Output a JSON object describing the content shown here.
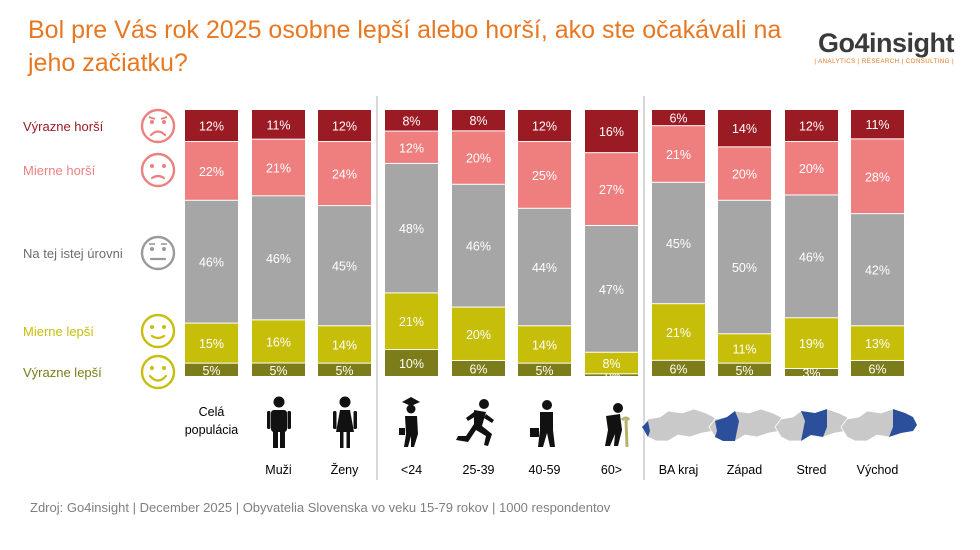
{
  "title": "Bol pre Vás rok 2025 osobne lepší alebo horší, ako ste očakávali na jeho začiatku?",
  "logo": {
    "name": "Go4insight",
    "tagline": "| ANALYTICS | RESEARCH | CONSULTING |"
  },
  "source": "Zdroj: Go4insight | December 2025 | Obyvatelia Slovenska vo veku 15-79 rokov | 1000 respondentov",
  "colors": {
    "title": "#e87722",
    "vyrazne_horsi": "#9b1b24",
    "mierne_horsi": "#ef7f7f",
    "rovnako": "#a6a6a6",
    "mierne_lepsi": "#c7be0a",
    "vyrazne_lepsi": "#7d7c1a",
    "map_highlight": "#2b4f9a",
    "map_base": "#c9c9c9"
  },
  "legend": [
    {
      "label": "Výrazne horší",
      "icon": "very-sad-face-icon"
    },
    {
      "label": "Mierne horší",
      "icon": "sad-face-icon"
    },
    {
      "label": "Na tej istej úrovni",
      "icon": "neutral-face-icon"
    },
    {
      "label": "Mierne lepší",
      "icon": "smile-face-icon"
    },
    {
      "label": "Výrazne lepší",
      "icon": "big-smile-face-icon"
    }
  ],
  "categories": [
    {
      "label": "Celá populácia",
      "icon": "none"
    },
    {
      "label": "Muži",
      "icon": "man-icon"
    },
    {
      "label": "Ženy",
      "icon": "woman-icon"
    },
    {
      "label": "<24",
      "icon": "graduate-icon"
    },
    {
      "label": "25-39",
      "icon": "runner-icon"
    },
    {
      "label": "40-59",
      "icon": "businessman-icon"
    },
    {
      "label": "60>",
      "icon": "elderly-icon"
    },
    {
      "label": "BA kraj",
      "icon": "slovakia-map-ba-icon"
    },
    {
      "label": "Západ",
      "icon": "slovakia-map-west-icon"
    },
    {
      "label": "Stred",
      "icon": "slovakia-map-center-icon"
    },
    {
      "label": "Východ",
      "icon": "slovakia-map-east-icon"
    }
  ],
  "chart_data": {
    "type": "bar",
    "stacked": true,
    "title": "Bol pre Vás rok 2025 osobne lepší alebo horší, ako ste očakávali na jeho začiatku?",
    "categories": [
      "Celá populácia",
      "Muži",
      "Ženy",
      "<24",
      "25-39",
      "40-59",
      "60>",
      "BA kraj",
      "Západ",
      "Stred",
      "Východ"
    ],
    "series": [
      {
        "name": "Výrazne lepší",
        "values": [
          5,
          5,
          5,
          10,
          6,
          5,
          1,
          6,
          5,
          3,
          6
        ],
        "labels": [
          "5%",
          "5%",
          "5%",
          "10%",
          "6%",
          "5%",
          "1%",
          "6%",
          "5%",
          "3%",
          "6%"
        ]
      },
      {
        "name": "Mierne lepší",
        "values": [
          15,
          16,
          14,
          21,
          20,
          14,
          8,
          21,
          11,
          19,
          13
        ],
        "labels": [
          "15%",
          "16%",
          "14%",
          "21%",
          "20%",
          "14%",
          "8%",
          "21%",
          "11%",
          "19%",
          "13%"
        ]
      },
      {
        "name": "Na tej istej úrovni",
        "values": [
          46,
          46,
          45,
          48,
          46,
          44,
          47,
          45,
          50,
          46,
          42
        ],
        "labels": [
          "46%",
          "46%",
          "45%",
          "48%",
          "46%",
          "44%",
          "47%",
          "45%",
          "50%",
          "46%",
          "42%"
        ]
      },
      {
        "name": "Mierne horší",
        "values": [
          22,
          21,
          24,
          12,
          20,
          25,
          27,
          21,
          20,
          20,
          28
        ],
        "labels": [
          "22%",
          "21%",
          "24%",
          "12%",
          "20%",
          "25%",
          "27%",
          "21%",
          "20%",
          "20%",
          "28%"
        ]
      },
      {
        "name": "Výrazne horší",
        "values": [
          12,
          11,
          12,
          8,
          8,
          12,
          16,
          6,
          14,
          12,
          11
        ],
        "labels": [
          "12%",
          "11%",
          "12%",
          "8%",
          "8%",
          "12%",
          "16%",
          "6%",
          "14%",
          "12%",
          "11%"
        ]
      }
    ],
    "ylim": [
      0,
      100
    ],
    "xlabel": "",
    "ylabel": "",
    "grid": false,
    "legend_position": "left"
  }
}
